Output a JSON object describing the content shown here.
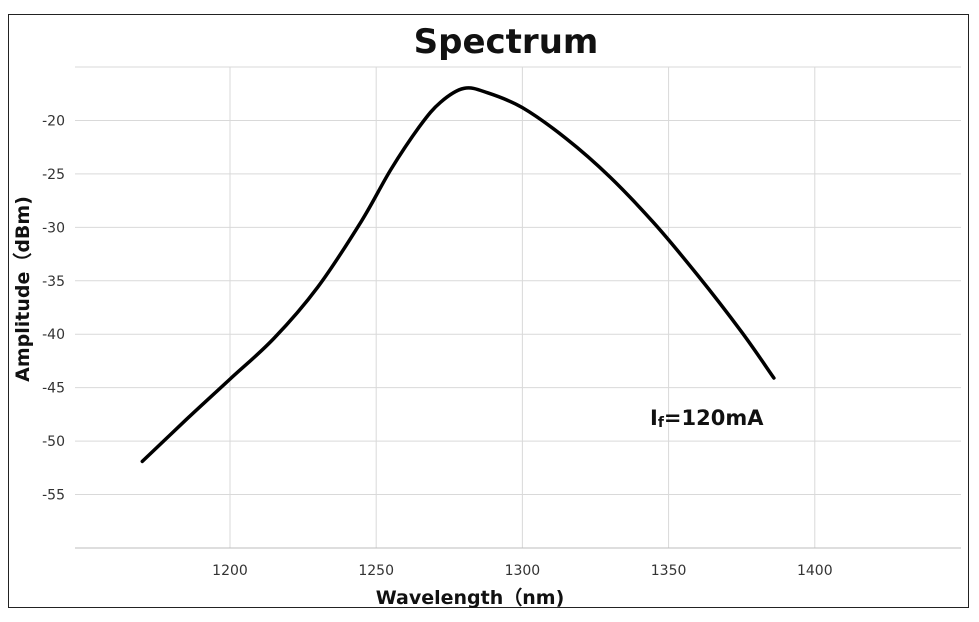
{
  "chart_data": {
    "type": "line",
    "title": "Spectrum",
    "xlabel": "Wavelength（nm)",
    "ylabel": "Amplitude（dBm)",
    "xlim": [
      1147,
      1450
    ],
    "ylim": [
      -60,
      -15
    ],
    "x_ticks": [
      1200,
      1250,
      1300,
      1350,
      1400
    ],
    "y_ticks": [
      -20,
      -25,
      -30,
      -35,
      -40,
      -45,
      -50,
      -55
    ],
    "grid": true,
    "annotation": {
      "main": "I",
      "sub": "f",
      "rest": "=120mA"
    },
    "x": [
      1170,
      1185,
      1200,
      1215,
      1230,
      1245,
      1255,
      1265,
      1272,
      1280,
      1288,
      1300,
      1315,
      1330,
      1345,
      1360,
      1375,
      1386
    ],
    "y": [
      -51.9,
      -48.0,
      -44.2,
      -40.4,
      -35.6,
      -29.4,
      -24.6,
      -20.5,
      -18.3,
      -17.0,
      -17.4,
      -18.8,
      -21.7,
      -25.3,
      -29.6,
      -34.5,
      -39.8,
      -44.1
    ]
  }
}
